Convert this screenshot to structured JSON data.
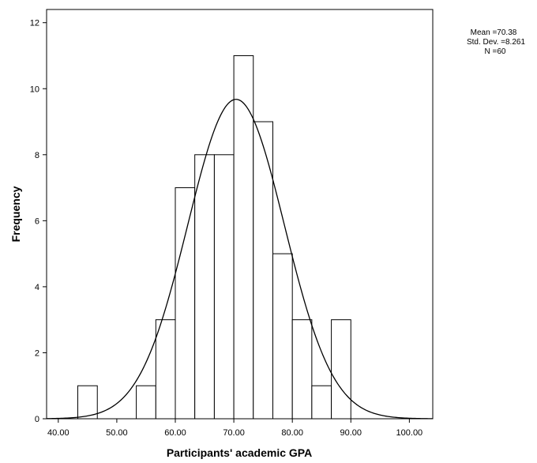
{
  "chart_data": {
    "type": "bar",
    "subtype": "histogram",
    "xlabel": "Participants' academic GPA",
    "ylabel": "Frequency",
    "xlim": [
      38,
      104
    ],
    "ylim": [
      0,
      12.4
    ],
    "x_ticks": [
      {
        "value": 40,
        "label": "40.00"
      },
      {
        "value": 50,
        "label": "50.00"
      },
      {
        "value": 60,
        "label": "60.00"
      },
      {
        "value": 70,
        "label": "70.00"
      },
      {
        "value": 80,
        "label": "80.00"
      },
      {
        "value": 90,
        "label": "90.00"
      },
      {
        "value": 100,
        "label": "100.00"
      }
    ],
    "y_ticks": [
      {
        "value": 0,
        "label": "0"
      },
      {
        "value": 2,
        "label": "2"
      },
      {
        "value": 4,
        "label": "4"
      },
      {
        "value": 6,
        "label": "6"
      },
      {
        "value": 8,
        "label": "8"
      },
      {
        "value": 10,
        "label": "10"
      },
      {
        "value": 12,
        "label": "12"
      }
    ],
    "bins": [
      {
        "start": 43.33,
        "end": 46.67,
        "count": 1
      },
      {
        "start": 46.67,
        "end": 50.0,
        "count": 0
      },
      {
        "start": 50.0,
        "end": 53.33,
        "count": 0
      },
      {
        "start": 53.33,
        "end": 56.67,
        "count": 1
      },
      {
        "start": 56.67,
        "end": 60.0,
        "count": 3
      },
      {
        "start": 60.0,
        "end": 63.33,
        "count": 7
      },
      {
        "start": 63.33,
        "end": 66.67,
        "count": 8
      },
      {
        "start": 66.67,
        "end": 70.0,
        "count": 8
      },
      {
        "start": 70.0,
        "end": 73.33,
        "count": 11
      },
      {
        "start": 73.33,
        "end": 76.67,
        "count": 9
      },
      {
        "start": 76.67,
        "end": 80.0,
        "count": 5
      },
      {
        "start": 80.0,
        "end": 83.33,
        "count": 3
      },
      {
        "start": 83.33,
        "end": 86.67,
        "count": 1
      },
      {
        "start": 86.67,
        "end": 90.0,
        "count": 3
      }
    ],
    "normal_curve": {
      "mean": 70.38,
      "std_dev": 8.261,
      "n": 60
    },
    "grid": false,
    "legend": "none",
    "stats_box": {
      "mean": "Mean =70.38",
      "std_dev": "Std. Dev. =8.261",
      "n": "N =60"
    }
  },
  "colors": {
    "bar_fill": "#ffffff",
    "stroke": "#000000",
    "background": "#ffffff"
  }
}
